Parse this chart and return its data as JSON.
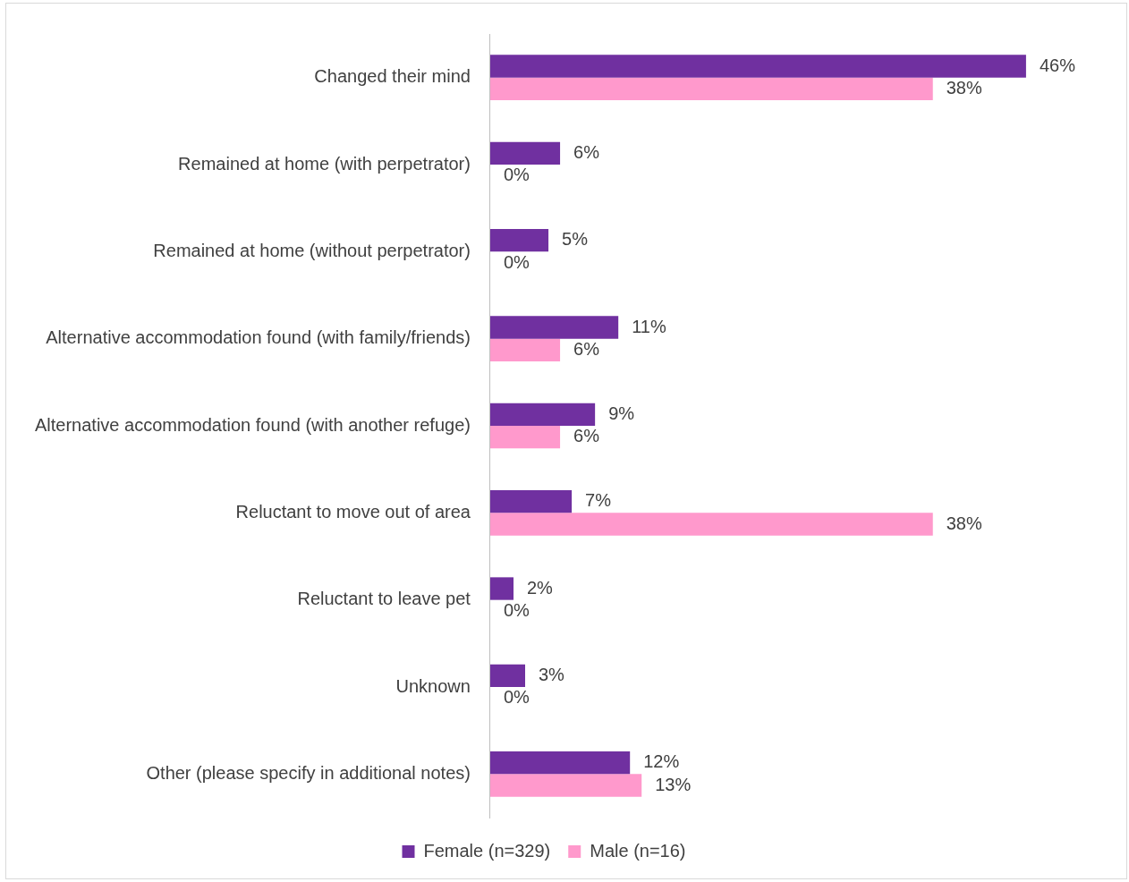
{
  "chart_data": {
    "type": "bar",
    "orientation": "horizontal",
    "categories": [
      "Changed their mind",
      "Remained at home (with perpetrator)",
      "Remained at home (without perpetrator)",
      "Alternative accommodation found (with family/friends)",
      "Alternative accommodation found (with another refuge)",
      "Reluctant to move out of area",
      "Reluctant to leave pet",
      "Unknown",
      "Other (please specify in additional notes)"
    ],
    "series": [
      {
        "name": "Female (n=329)",
        "color": "#7030a0",
        "values": [
          46,
          6,
          5,
          11,
          9,
          7,
          2,
          3,
          12
        ],
        "value_labels": [
          "46%",
          "6%",
          "5%",
          "11%",
          "9%",
          "7%",
          "2%",
          "3%",
          "12%"
        ]
      },
      {
        "name": "Male (n=16)",
        "color": "#ff99cc",
        "values": [
          38,
          0,
          0,
          6,
          6,
          38,
          0,
          0,
          13
        ],
        "value_labels": [
          "38%",
          "0%",
          "0%",
          "6%",
          "6%",
          "38%",
          "0%",
          "0%",
          "13%"
        ]
      }
    ],
    "legend": "bottom",
    "tick_labels": "y",
    "grid": false
  }
}
